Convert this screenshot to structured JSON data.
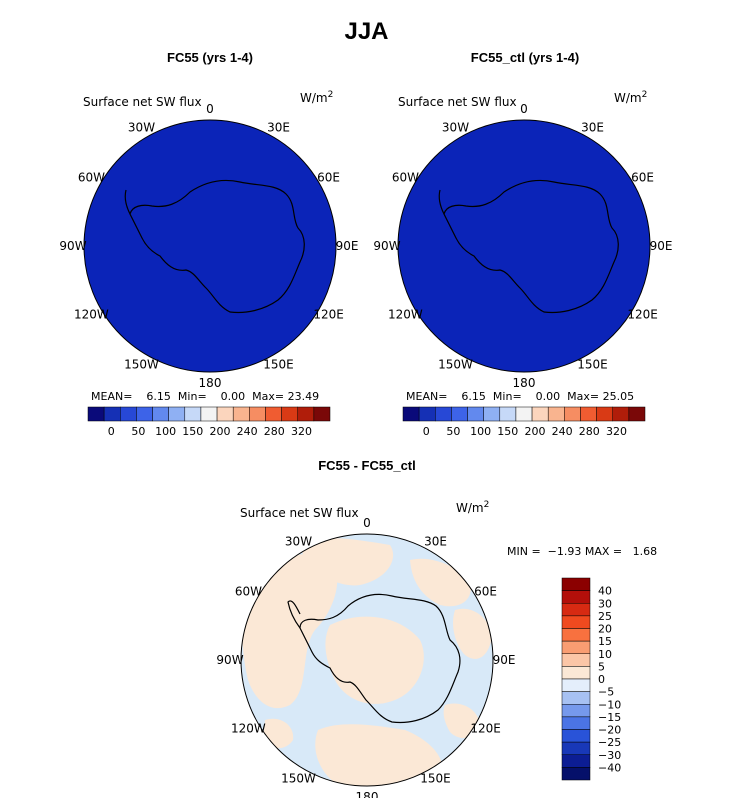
{
  "title": "JJA",
  "panels": [
    {
      "title": "FC55 (yrs 1-4)",
      "variable": "Surface net SW flux",
      "units": "W/m",
      "units_sup": "2",
      "lon_labels": [
        "0",
        "30E",
        "60E",
        "90E",
        "120E",
        "150E",
        "180",
        "150W",
        "120W",
        "90W",
        "60W",
        "30W"
      ],
      "stats": {
        "mean_label": "MEAN=",
        "mean": "6.15",
        "min_label": "Min=",
        "min": "0.00",
        "max_label": "Max=",
        "max": "23.49"
      },
      "colorbar_ticks": [
        "0",
        "50",
        "100",
        "150",
        "200",
        "240",
        "280",
        "320"
      ]
    },
    {
      "title": "FC55_ctl (yrs 1-4)",
      "variable": "Surface net SW flux",
      "units": "W/m",
      "units_sup": "2",
      "lon_labels": [
        "0",
        "30E",
        "60E",
        "90E",
        "120E",
        "150E",
        "180",
        "150W",
        "120W",
        "90W",
        "60W",
        "30W"
      ],
      "stats": {
        "mean_label": "MEAN=",
        "mean": "6.15",
        "min_label": "Min=",
        "min": "0.00",
        "max_label": "Max=",
        "max": "25.05"
      },
      "colorbar_ticks": [
        "0",
        "50",
        "100",
        "150",
        "200",
        "240",
        "280",
        "320"
      ]
    },
    {
      "title": "FC55 - FC55_ctl",
      "variable": "Surface net SW flux",
      "units": "W/m",
      "units_sup": "2",
      "lon_labels": [
        "0",
        "30E",
        "60E",
        "90E",
        "120E",
        "150E",
        "180",
        "150W",
        "120W",
        "90W",
        "60W",
        "30W"
      ],
      "minmax": "MIN =  −1.93 MAX =   1.68",
      "colorbar_ticks": [
        "40",
        "30",
        "25",
        "20",
        "15",
        "10",
        "5",
        "0",
        "−5",
        "−10",
        "−15",
        "−20",
        "−25",
        "−30",
        "−40"
      ]
    }
  ],
  "colors": {
    "field_fill": "#0b24b8",
    "diff_positive": "#fbe8d6",
    "diff_negative": "#d8e9f8",
    "coast": "#000000",
    "horizontal_colorbar": [
      "#0a0a7a",
      "#1530b5",
      "#2748d6",
      "#3d63e8",
      "#6289ee",
      "#8fb0f3",
      "#c6d9f8",
      "#f3f3f3",
      "#fbd5bd",
      "#f9b48f",
      "#f68d62",
      "#f05c31",
      "#d93a15",
      "#b01d0a",
      "#7a0808"
    ],
    "vertical_colorbar": [
      "#8b0000",
      "#b30f0a",
      "#d72a12",
      "#f04a1f",
      "#f8713f",
      "#f99d72",
      "#fbc6a7",
      "#fbe8d6",
      "#e4eefb",
      "#a7c1f2",
      "#7699ec",
      "#4b74e5",
      "#2953d8",
      "#1838b8",
      "#0c1d94",
      "#05106a"
    ]
  }
}
